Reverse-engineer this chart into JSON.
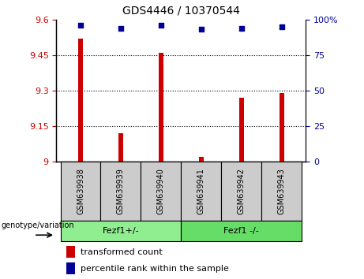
{
  "title": "GDS4446 / 10370544",
  "samples": [
    "GSM639938",
    "GSM639939",
    "GSM639940",
    "GSM639941",
    "GSM639942",
    "GSM639943"
  ],
  "red_values": [
    9.52,
    9.12,
    9.46,
    9.02,
    9.27,
    9.29
  ],
  "blue_values": [
    96,
    94,
    96,
    93,
    94,
    95
  ],
  "ylim_left": [
    9.0,
    9.6
  ],
  "ylim_right": [
    0,
    100
  ],
  "yticks_left": [
    9.0,
    9.15,
    9.3,
    9.45,
    9.6
  ],
  "yticks_right": [
    0,
    25,
    50,
    75,
    100
  ],
  "ytick_labels_left": [
    "9",
    "9.15",
    "9.3",
    "9.45",
    "9.6"
  ],
  "ytick_labels_right": [
    "0",
    "25",
    "50",
    "75",
    "100%"
  ],
  "grid_lines": [
    9.15,
    9.3,
    9.45
  ],
  "group1_label": "Fezf1+/-",
  "group2_label": "Fezf1 -/-",
  "group1_indices": [
    0,
    1,
    2
  ],
  "group2_indices": [
    3,
    4,
    5
  ],
  "genotype_label": "genotype/variation",
  "legend_red": "transformed count",
  "legend_blue": "percentile rank within the sample",
  "bar_color": "#cc0000",
  "dot_color": "#000099",
  "group1_color": "#90ee90",
  "group2_color": "#66dd66",
  "sample_bg_color": "#cccccc",
  "plot_bg_color": "#ffffff",
  "bar_width": 0.12,
  "base": 9.0
}
